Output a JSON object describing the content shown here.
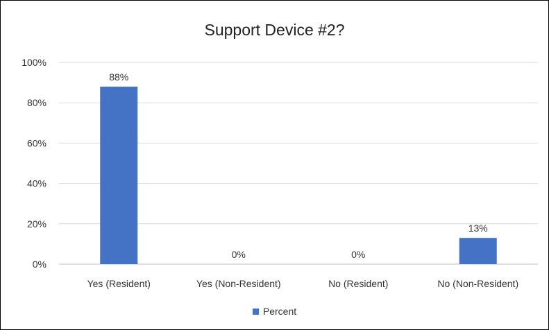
{
  "chart_data": {
    "type": "bar",
    "title": "Support Device #2?",
    "xlabel": "",
    "ylabel": "",
    "categories": [
      "Yes (Resident)",
      "Yes (Non-Resident)",
      "No (Resident)",
      "No (Non-Resident)"
    ],
    "series": [
      {
        "name": "Percent",
        "values": [
          88,
          0,
          0,
          13
        ],
        "labels": [
          "88%",
          "0%",
          "0%",
          "13%"
        ],
        "color": "#4472C4"
      }
    ],
    "ylim": [
      0,
      100
    ],
    "yticks": [
      0,
      20,
      40,
      60,
      80,
      100
    ],
    "ytick_labels": [
      "0%",
      "20%",
      "40%",
      "60%",
      "80%",
      "100%"
    ],
    "grid": true,
    "legend_position": "bottom"
  }
}
